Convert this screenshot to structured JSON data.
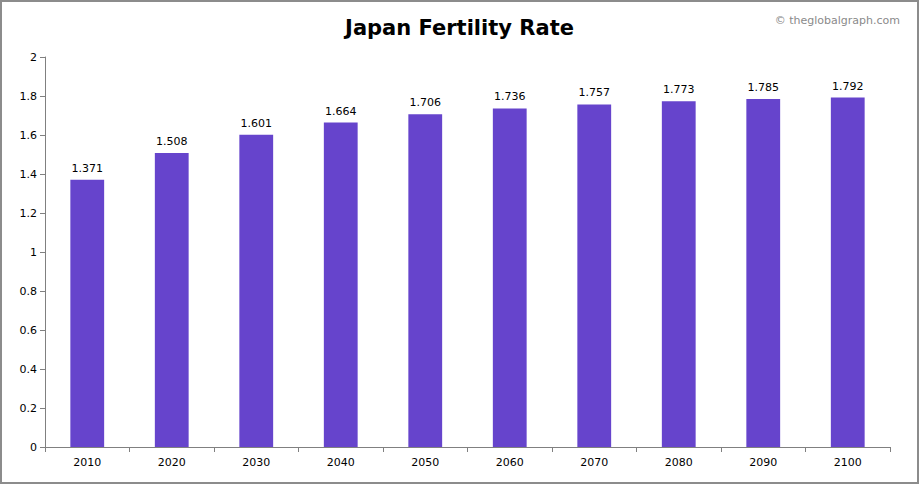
{
  "chart_data": {
    "type": "bar",
    "title": "Japan Fertility Rate",
    "annotations": [
      "© theglobalgraph.com"
    ],
    "categories": [
      "2010",
      "2020",
      "2030",
      "2040",
      "2050",
      "2060",
      "2070",
      "2080",
      "2090",
      "2100"
    ],
    "values": [
      1.371,
      1.508,
      1.601,
      1.664,
      1.706,
      1.736,
      1.757,
      1.773,
      1.785,
      1.792
    ],
    "color": "#6644cc",
    "ylim": [
      0,
      2
    ],
    "yticks": [
      0,
      0.2,
      0.4,
      0.6,
      0.8,
      1,
      1.2,
      1.4,
      1.6,
      1.8,
      2
    ],
    "grid": false,
    "data_labels": true
  }
}
